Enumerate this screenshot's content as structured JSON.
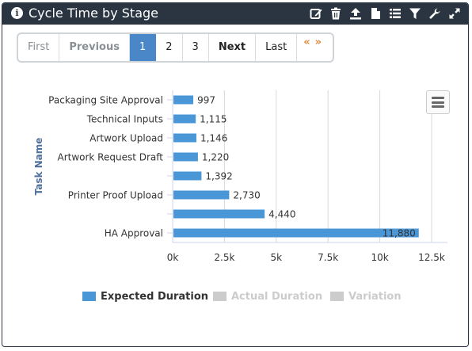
{
  "header": {
    "info_icon": "i",
    "title": "Cycle Time by Stage",
    "tools": [
      "edit-icon",
      "trash-icon",
      "upload-icon",
      "document-icon",
      "list-icon",
      "filter-icon",
      "wrench-icon",
      "expand-icon"
    ]
  },
  "pager": {
    "first": "First",
    "previous": "Previous",
    "pages": [
      "1",
      "2",
      "3"
    ],
    "active_page": "1",
    "next": "Next",
    "last": "Last",
    "prev_arrows": "«",
    "next_arrows": "»"
  },
  "chart_data": {
    "type": "bar",
    "orientation": "horizontal",
    "categories": [
      "Packaging Site Approval",
      "Technical Inputs",
      "Artwork Upload",
      "Artwork Request Draft",
      "",
      "Printer Proof Upload",
      "",
      "HA Approval"
    ],
    "values": [
      997,
      1115,
      1146,
      1220,
      1392,
      2730,
      4440,
      11880
    ],
    "data_labels": [
      "997",
      "1,115",
      "1,146",
      "1,220",
      "1,392",
      "2,730",
      "4,440",
      "11,880"
    ],
    "xlabel": "",
    "ylabel": "Task Name",
    "xlim": [
      0,
      12500
    ],
    "x_ticks": [
      "0k",
      "2.5k",
      "5k",
      "7.5k",
      "10k",
      "12.5k"
    ],
    "grid": "vertical",
    "colors": {
      "expected": "#4a97d8",
      "inactive": "#cccccc"
    },
    "legend": [
      {
        "name": "Expected Duration",
        "active": true
      },
      {
        "name": "Actual Duration",
        "active": false
      },
      {
        "name": "Variation",
        "active": false
      }
    ]
  }
}
